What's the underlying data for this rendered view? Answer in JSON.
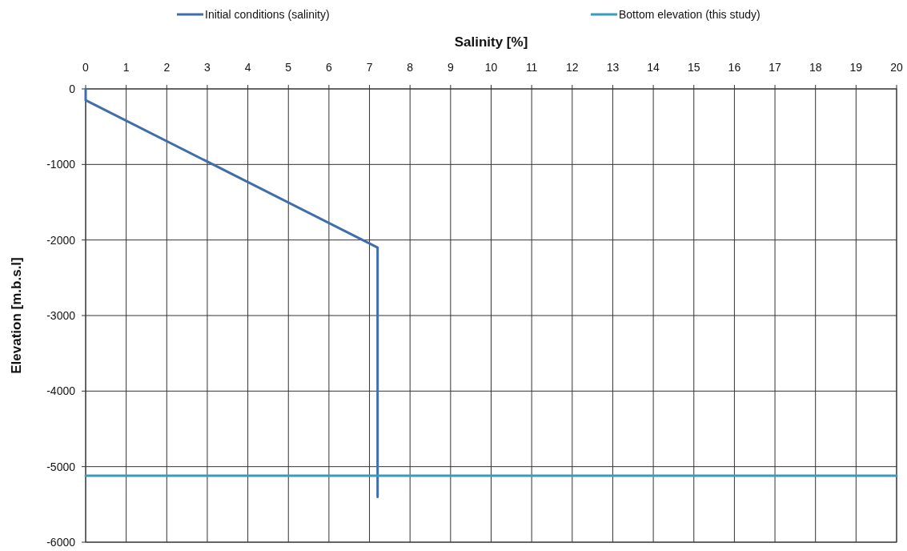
{
  "chart_data": {
    "type": "line",
    "xlabel": "Salinity [%]",
    "ylabel": "Elevation [m.b.s.l]",
    "xlim": [
      0,
      20
    ],
    "xticks": [
      0,
      1,
      2,
      3,
      4,
      5,
      6,
      7,
      8,
      9,
      10,
      11,
      12,
      13,
      14,
      15,
      16,
      17,
      18,
      19,
      20
    ],
    "ylim": [
      -6000,
      0
    ],
    "yticks": [
      -6000,
      -5000,
      -4000,
      -3000,
      -2000,
      -1000,
      0
    ],
    "grid": true,
    "legend": "top",
    "line_style": "solid",
    "marker": "none",
    "series": [
      {
        "name": "Initial conditions (salinity)",
        "color": "#3f6eaa",
        "x": [
          0,
          0,
          7.2,
          7.2
        ],
        "values": [
          0,
          -150,
          -2100,
          -5400
        ]
      },
      {
        "name": "Bottom elevation (this study)",
        "color": "#3a9bbb",
        "x": [
          0,
          20
        ],
        "values": [
          -5120,
          -5120
        ]
      }
    ]
  }
}
